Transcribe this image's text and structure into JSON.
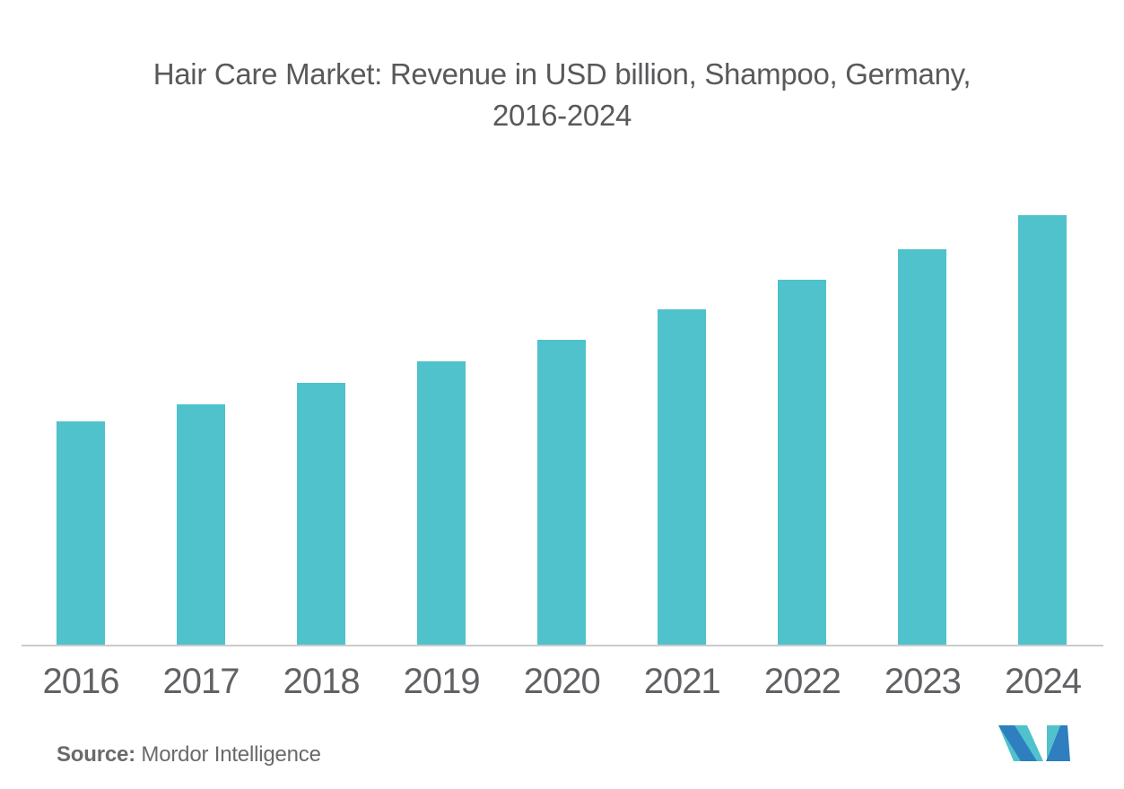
{
  "title": {
    "line1": "Hair Care Market: Revenue in USD billion, Shampoo, Germany,",
    "line2": "2016-2024"
  },
  "source": {
    "label": "Source:",
    "name": " Mordor Intelligence"
  },
  "logo": {
    "name": "mordor-intelligence-logo",
    "teal": "#4FC2CB",
    "blue": "#2E7EC0"
  },
  "colors": {
    "bar": "#4FC2CB",
    "axis_line": "#CBCBCB",
    "title_text": "#58595B",
    "tick_text": "#616265",
    "source_text": "#6A6A6C",
    "background": "#FFFFFF"
  },
  "chart_data": {
    "type": "bar",
    "title": "Hair Care Market: Revenue in USD billion, Shampoo, Germany, 2016-2024",
    "categories": [
      "2016",
      "2017",
      "2018",
      "2019",
      "2020",
      "2021",
      "2022",
      "2023",
      "2024"
    ],
    "values_relative_to_max": [
      0.52,
      0.56,
      0.61,
      0.66,
      0.71,
      0.78,
      0.85,
      0.92,
      1.0
    ],
    "series": [
      {
        "name": "Revenue (USD billion, scale not labeled)",
        "values": [
          0.52,
          0.56,
          0.61,
          0.66,
          0.71,
          0.78,
          0.85,
          0.92,
          1.0
        ]
      }
    ],
    "value_axis": "none shown (bars unlabeled, no y-axis ticks or gridlines)",
    "xlabel": "",
    "ylabel": "",
    "legend": "none",
    "grid": false,
    "bar_color": "#4FC2CB",
    "trend": "steady year-over-year increase from 2016 to 2024"
  }
}
